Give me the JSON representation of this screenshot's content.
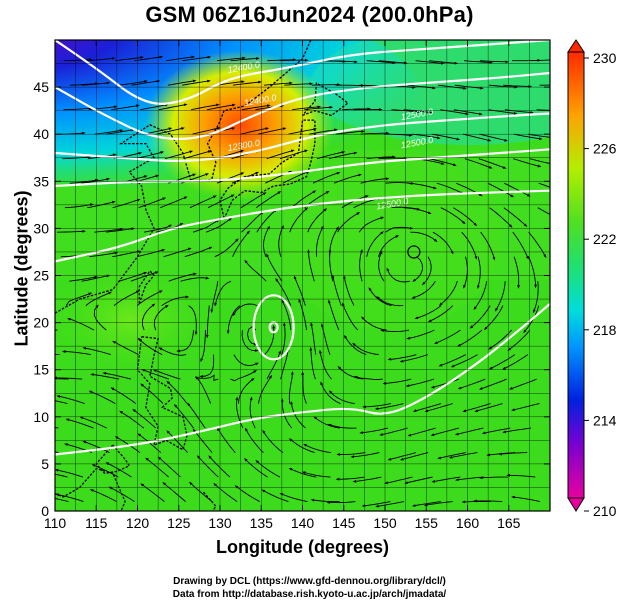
{
  "title": "GSM 06Z16Jun2024 (200.0hPa)",
  "x_axis": {
    "label": "Longitude (degrees)",
    "ticks": [
      "110",
      "115",
      "120",
      "125",
      "130",
      "135",
      "140",
      "145",
      "150",
      "155",
      "160",
      "165"
    ],
    "range": [
      110,
      170
    ]
  },
  "y_axis": {
    "label": "Latitude  (degrees)",
    "ticks": [
      "0",
      "5",
      "10",
      "15",
      "20",
      "25",
      "30",
      "35",
      "40",
      "45"
    ],
    "range": [
      0,
      50
    ]
  },
  "colorbar": {
    "ticks": [
      "210",
      "214",
      "218",
      "222",
      "226",
      "230"
    ],
    "range": [
      210,
      230
    ],
    "colors": [
      "#e8009a",
      "#6600cc",
      "#0018d8",
      "#0090ff",
      "#00d8d8",
      "#20e070",
      "#44dd10",
      "#c8f000",
      "#ff9a00",
      "#ff3300"
    ]
  },
  "contours": {
    "labels": [
      "12300.0",
      "12400.0",
      "12400.0",
      "12500.0",
      "12500.0",
      "12500.0"
    ]
  },
  "chart_data": {
    "type": "heatmap",
    "title": "GSM 06Z16Jun2024 (200.0hPa)",
    "xlabel": "Longitude (degrees)",
    "ylabel": "Latitude  (degrees)",
    "xlim": [
      110,
      170
    ],
    "ylim": [
      0,
      50
    ],
    "colorbar_range": [
      210,
      230
    ],
    "features": [
      {
        "label": "anticyclone",
        "lon": 153.5,
        "lat": 27.5
      },
      {
        "label": "cyclone",
        "lon": 136.5,
        "lat": 19.5
      },
      {
        "label": "warm maximum",
        "lon": 131,
        "lat": 41
      },
      {
        "label": "cold minimum",
        "lon": 113,
        "lat": 47
      }
    ],
    "grid": true
  },
  "credits": [
    "Drawing by DCL (https://www.gfd-dennou.org/library/dcl/)",
    "Data from http://database.rish.kyoto-u.ac.jp/arch/jmadata/"
  ]
}
